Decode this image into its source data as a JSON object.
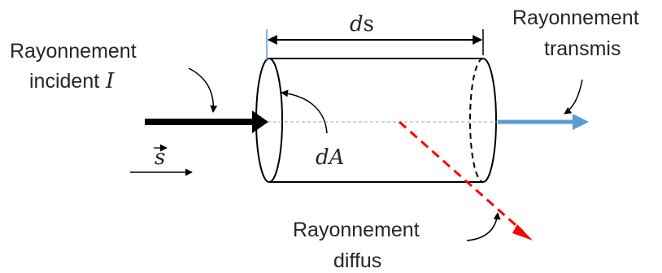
{
  "labels": {
    "incident_line1": "Rayonnement",
    "incident_line2": "incident",
    "incident_symbol": "I",
    "transmitted_line1": "Rayonnement",
    "transmitted_line2": "transmis",
    "diffuse_line1": "Rayonnement",
    "diffuse_line2": "diffus",
    "length_d": "d",
    "length_s": "s",
    "area": "dA",
    "direction_vector": "s"
  },
  "colors": {
    "ink": "#000000",
    "text": "#262626",
    "transmitted_arrow": "#5b9bd5",
    "diffuse_arrow": "#ff0000",
    "axis": "#a6a6a6",
    "dimension_tick": "#5b9bd5"
  }
}
